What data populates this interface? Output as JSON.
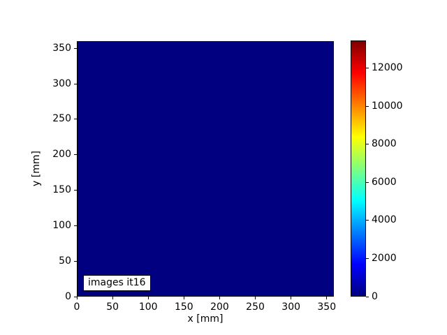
{
  "figure": {
    "background": "#ffffff",
    "plot_fill": "#000080",
    "spine_color": "#000000"
  },
  "chart_data": {
    "type": "heatmap",
    "title": "",
    "xlabel": "x [mm]",
    "ylabel": "y [mm]",
    "xlim": [
      0,
      360
    ],
    "ylim": [
      0,
      360
    ],
    "x_ticks": [
      0,
      50,
      100,
      150,
      200,
      250,
      300,
      350
    ],
    "y_ticks": [
      0,
      50,
      100,
      150,
      200,
      250,
      300,
      350
    ],
    "grid": false,
    "legend": "none",
    "annotation": "images it16",
    "colormap": "jet",
    "values_summary": "uniform value ~0 over entire 0-360 x 0-360 mm field; whole image rendered at colormap minimum (dark navy #000080)",
    "colorbar": {
      "vmin": 0,
      "vmax": 13450,
      "ticks": [
        0,
        2000,
        4000,
        6000,
        8000,
        10000,
        12000
      ],
      "gradient_stops": [
        "#000080",
        "#0000ff",
        "#007fff",
        "#00ffff",
        "#7fff7f",
        "#ffff00",
        "#ff7f00",
        "#ff0000",
        "#7f0000"
      ]
    }
  }
}
